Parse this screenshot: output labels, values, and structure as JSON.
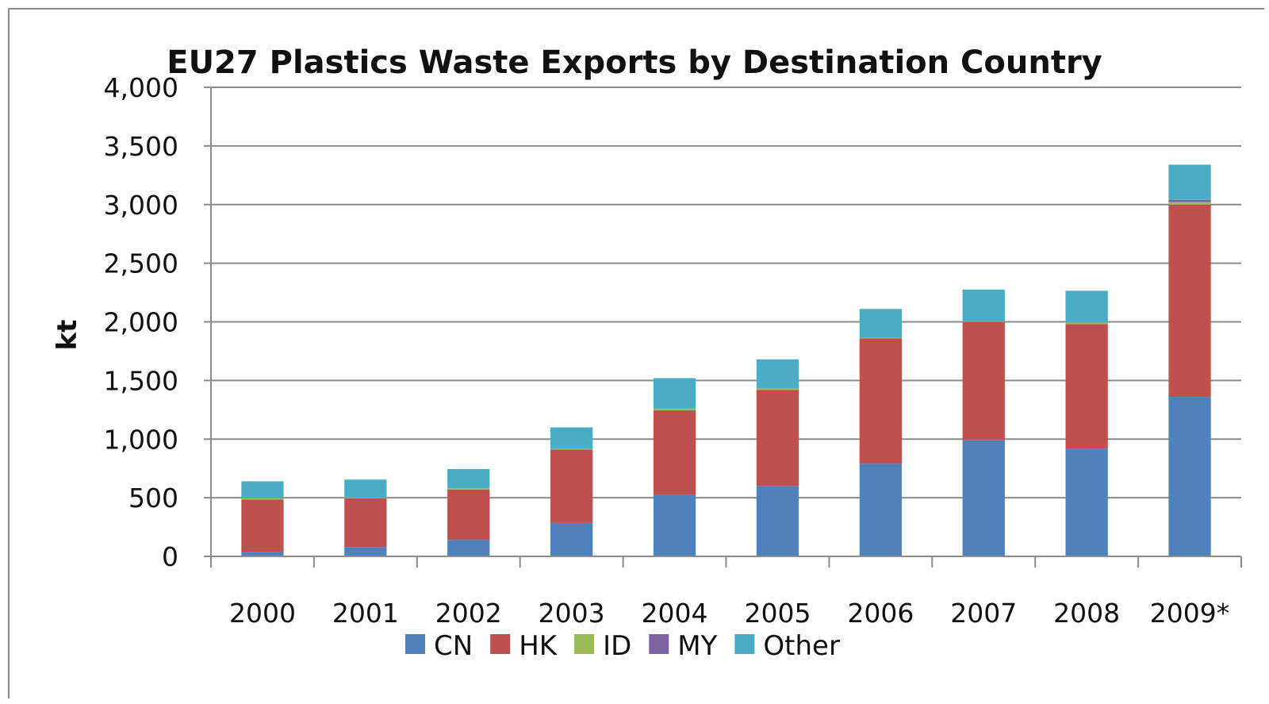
{
  "chart_data": {
    "type": "bar",
    "stacked": true,
    "title": "EU27 Plastics Waste Exports by Destination Country",
    "xlabel": "",
    "ylabel": "kt",
    "ylim": [
      0,
      4000
    ],
    "yticks": [
      0,
      500,
      1000,
      1500,
      2000,
      2500,
      3000,
      3500,
      4000
    ],
    "ytick_labels": [
      "0",
      "500",
      "1,000",
      "1,500",
      "2,000",
      "2,500",
      "3,000",
      "3,500",
      "4,000"
    ],
    "grid": true,
    "legend_position": "bottom",
    "categories": [
      "2000",
      "2001",
      "2002",
      "2003",
      "2004",
      "2005",
      "2006",
      "2007",
      "2008",
      "2009*"
    ],
    "series": [
      {
        "name": "CN",
        "color": "#4F81BD",
        "values": [
          40,
          80,
          140,
          285,
          525,
          600,
          790,
          990,
          920,
          1360
        ]
      },
      {
        "name": "HK",
        "color": "#C0504D",
        "values": [
          445,
          415,
          430,
          625,
          720,
          820,
          1070,
          1010,
          1060,
          1640
        ]
      },
      {
        "name": "ID",
        "color": "#9BBB59",
        "values": [
          10,
          5,
          10,
          5,
          15,
          15,
          5,
          5,
          15,
          20
        ]
      },
      {
        "name": "MY",
        "color": "#8064A2",
        "values": [
          0,
          0,
          0,
          0,
          0,
          0,
          0,
          0,
          0,
          20
        ]
      },
      {
        "name": "Other",
        "color": "#4BACC6",
        "values": [
          145,
          155,
          165,
          185,
          260,
          245,
          245,
          270,
          270,
          300
        ]
      }
    ]
  }
}
